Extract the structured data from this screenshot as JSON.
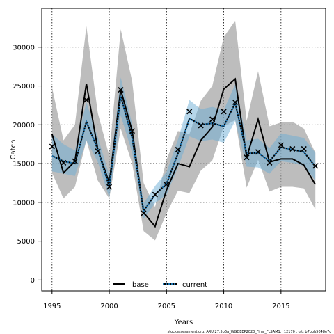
{
  "chart_data": {
    "type": "line",
    "title": "",
    "xlabel": "Years",
    "ylabel": "Catch",
    "xlim": [
      1994.1,
      2018.9
    ],
    "ylim": [
      -1400,
      35000
    ],
    "x_ticks": [
      1995,
      2000,
      2005,
      2010,
      2015
    ],
    "y_ticks": [
      0,
      5000,
      10000,
      15000,
      20000,
      25000,
      30000
    ],
    "grid": true,
    "legend_position": "bottom-center",
    "footnote": "stockassessment.org, ARU.27.5b6a_WGDEEP2020_Final_FLSAM1, r12170 , git: b7bbb5048e7c",
    "x": [
      1995,
      1996,
      1997,
      1998,
      1999,
      2000,
      2001,
      2002,
      2003,
      2004,
      2005,
      2006,
      2007,
      2008,
      2009,
      2010,
      2011,
      2012,
      2013,
      2014,
      2015,
      2016,
      2017,
      2018
    ],
    "series": [
      {
        "name": "base",
        "color": "#000000",
        "band_color": "#999999",
        "values": [
          18800,
          13800,
          15300,
          25300,
          16800,
          12500,
          24500,
          19200,
          8700,
          6900,
          11600,
          15000,
          14600,
          18000,
          19700,
          24600,
          25900,
          15800,
          20700,
          15200,
          15600,
          15600,
          14800,
          12300
        ],
        "lower": [
          13800,
          10500,
          12000,
          18000,
          12800,
          10500,
          19500,
          15000,
          6300,
          5100,
          8600,
          11500,
          11200,
          14100,
          15400,
          19800,
          20600,
          11900,
          15500,
          11400,
          12000,
          12000,
          11800,
          9100
        ],
        "upper": [
          24800,
          18000,
          20000,
          32700,
          21500,
          16000,
          32300,
          25600,
          12500,
          9400,
          15500,
          19200,
          18800,
          23100,
          25000,
          31300,
          33400,
          20500,
          26900,
          19800,
          20300,
          20400,
          19500,
          16400
        ]
      },
      {
        "name": "current",
        "color": "#1f77b4",
        "band_color": "#6baed6",
        "values": [
          16000,
          15300,
          15000,
          20400,
          16800,
          12000,
          23700,
          18300,
          8900,
          11000,
          12400,
          16300,
          20800,
          20000,
          20200,
          19800,
          22800,
          16300,
          16400,
          15300,
          17100,
          16800,
          16500,
          14600
        ],
        "lower": [
          14000,
          13700,
          13400,
          18000,
          15200,
          10600,
          21200,
          16400,
          7900,
          9900,
          11000,
          14500,
          18500,
          17900,
          18100,
          17700,
          20500,
          14600,
          14500,
          13700,
          15300,
          15100,
          14700,
          12800
        ],
        "upper": [
          18800,
          17500,
          16700,
          22900,
          18400,
          13500,
          26100,
          20100,
          9900,
          12100,
          13900,
          18100,
          23200,
          22000,
          22300,
          21900,
          25200,
          18000,
          18200,
          17000,
          18900,
          18600,
          18300,
          16400
        ]
      }
    ],
    "observed": {
      "marker": "x",
      "values": [
        17200,
        15100,
        15300,
        23200,
        16600,
        12000,
        24500,
        19200,
        8600,
        11000,
        12300,
        16800,
        21700,
        19900,
        20700,
        21700,
        22900,
        15800,
        16500,
        15100,
        17400,
        16900,
        16900,
        14700
      ]
    }
  }
}
